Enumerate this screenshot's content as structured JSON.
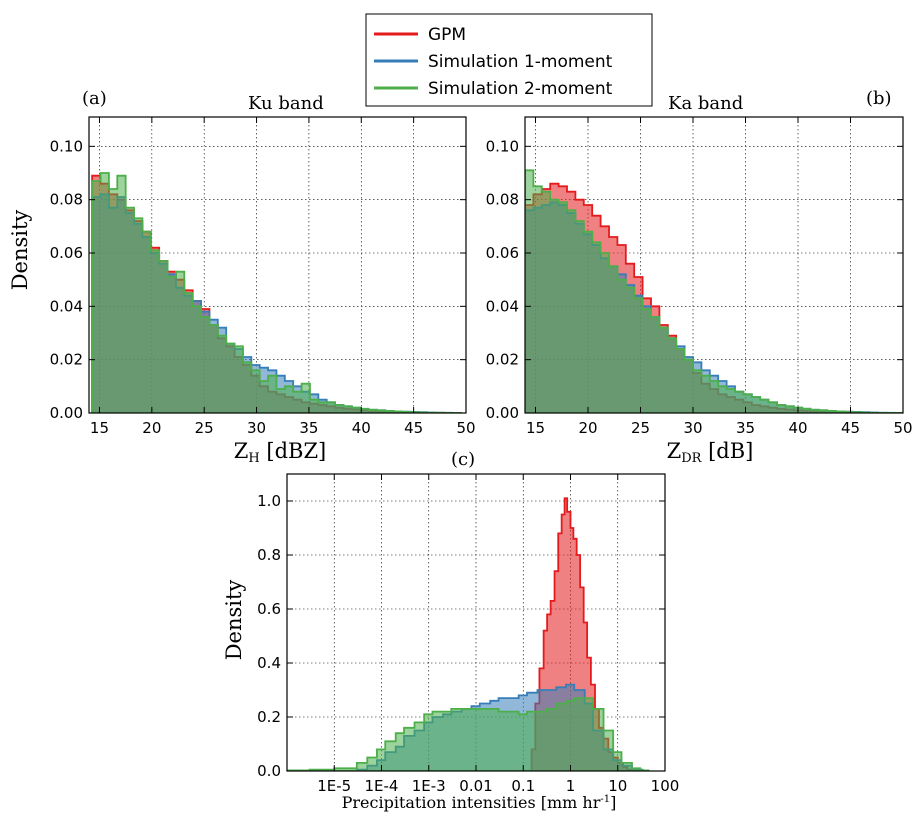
{
  "legend": {
    "entries": [
      {
        "name": "GPM",
        "color": "#e41a1c"
      },
      {
        "name": "Simulation 1-moment",
        "color": "#377eb8"
      },
      {
        "name": "Simulation 2-moment",
        "color": "#4daf4a"
      }
    ]
  },
  "colors": {
    "gpm": "#e41a1c",
    "sim1": "#377eb8",
    "sim2": "#4daf4a"
  },
  "chart_data": [
    {
      "type": "area",
      "panel_label": "(a)",
      "title": "Ku band",
      "xlabel_main": "Z",
      "xlabel_sub": "H",
      "xlabel_unit": " [dBZ]",
      "ylabel": "Density",
      "xlim": [
        14,
        50
      ],
      "ylim": [
        0,
        0.111
      ],
      "xticks": [
        15,
        20,
        25,
        30,
        35,
        40,
        45,
        50
      ],
      "yticks": [
        0.0,
        0.02,
        0.04,
        0.06,
        0.08,
        0.1
      ],
      "ytick_labels": [
        "0.00",
        "0.02",
        "0.04",
        "0.06",
        "0.08",
        "0.10"
      ],
      "show_ylabel": true,
      "grid": true,
      "x": [
        14.3,
        15.1,
        15.9,
        16.7,
        17.5,
        18.3,
        19.1,
        19.9,
        20.7,
        21.5,
        22.3,
        23.1,
        23.9,
        24.7,
        25.5,
        26.3,
        27.1,
        27.9,
        28.7,
        29.5,
        30.3,
        31.1,
        31.9,
        32.7,
        33.5,
        34.3,
        35.1,
        35.9,
        36.7,
        37.5,
        38.3,
        39.1,
        39.9,
        40.7,
        41.5,
        42.3,
        43.1,
        43.9,
        44.7,
        45.5,
        46.3,
        47.1,
        47.9,
        48.7
      ],
      "series": [
        {
          "name": "GPM",
          "values": [
            0.089,
            0.086,
            0.082,
            0.08,
            0.076,
            0.072,
            0.068,
            0.062,
            0.057,
            0.053,
            0.05,
            0.046,
            0.042,
            0.039,
            0.033,
            0.028,
            0.025,
            0.021,
            0.018,
            0.014,
            0.01,
            0.008,
            0.007,
            0.006,
            0.005,
            0.004,
            0.0035,
            0.003,
            0.0025,
            0.002,
            0.0016,
            0.0013,
            0.001,
            0.0008,
            0.0006,
            0.0005,
            0.0004,
            0.0003,
            0.0002,
            0.00015,
            0.0001,
            0.0001,
            5e-05,
            5e-05
          ]
        },
        {
          "name": "Simulation 1-moment",
          "values": [
            0.081,
            0.082,
            0.077,
            0.081,
            0.075,
            0.071,
            0.066,
            0.06,
            0.056,
            0.052,
            0.047,
            0.044,
            0.042,
            0.038,
            0.035,
            0.032,
            0.026,
            0.024,
            0.021,
            0.018,
            0.017,
            0.016,
            0.014,
            0.012,
            0.01,
            0.008,
            0.007,
            0.005,
            0.004,
            0.003,
            0.0025,
            0.002,
            0.0015,
            0.0012,
            0.001,
            0.0008,
            0.0006,
            0.0005,
            0.0004,
            0.0003,
            0.0002,
            0.0001,
            0.0001,
            5e-05
          ]
        },
        {
          "name": "Simulation 2-moment",
          "values": [
            0.087,
            0.09,
            0.084,
            0.089,
            0.077,
            0.073,
            0.068,
            0.061,
            0.057,
            0.051,
            0.053,
            0.045,
            0.04,
            0.036,
            0.033,
            0.029,
            0.026,
            0.025,
            0.019,
            0.016,
            0.012,
            0.014,
            0.009,
            0.01,
            0.008,
            0.011,
            0.005,
            0.004,
            0.004,
            0.003,
            0.0025,
            0.002,
            0.0016,
            0.0012,
            0.001,
            0.0008,
            0.0006,
            0.0004,
            0.0003,
            0.0002,
            0.0001,
            0.0001,
            5e-05,
            5e-05
          ]
        }
      ]
    },
    {
      "type": "area",
      "panel_label": "(b)",
      "title": "Ka band",
      "xlabel_main": "Z",
      "xlabel_sub": "DR",
      "xlabel_unit": " [dB]",
      "ylabel": "Density",
      "xlim": [
        14,
        50
      ],
      "ylim": [
        0,
        0.111
      ],
      "xticks": [
        15,
        20,
        25,
        30,
        35,
        40,
        45,
        50
      ],
      "yticks": [
        0.0,
        0.02,
        0.04,
        0.06,
        0.08,
        0.1
      ],
      "ytick_labels": [
        "0.00",
        "0.02",
        "0.04",
        "0.06",
        "0.08",
        "0.10"
      ],
      "show_ylabel": false,
      "grid": true,
      "x": [
        14.0,
        14.8,
        15.6,
        16.4,
        17.2,
        18.0,
        18.8,
        19.6,
        20.4,
        21.2,
        22.0,
        22.8,
        23.6,
        24.4,
        25.2,
        26.0,
        26.8,
        27.6,
        28.4,
        29.2,
        30.0,
        30.8,
        31.6,
        32.4,
        33.2,
        34.0,
        34.8,
        35.6,
        36.4,
        37.2,
        38.0,
        38.8,
        39.6,
        40.4,
        41.2,
        42.0,
        42.8,
        43.6,
        44.4,
        45.2,
        46.0,
        46.8,
        47.6,
        48.4,
        49.2
      ],
      "series": [
        {
          "name": "GPM",
          "values": [
            0.078,
            0.082,
            0.084,
            0.086,
            0.085,
            0.083,
            0.08,
            0.078,
            0.074,
            0.07,
            0.066,
            0.063,
            0.056,
            0.051,
            0.043,
            0.04,
            0.033,
            0.029,
            0.024,
            0.02,
            0.015,
            0.011,
            0.009,
            0.007,
            0.006,
            0.005,
            0.004,
            0.003,
            0.0025,
            0.002,
            0.0016,
            0.0013,
            0.001,
            0.0008,
            0.0006,
            0.0005,
            0.0004,
            0.0003,
            0.0002,
            0.00015,
            0.0001,
            0.0001,
            5e-05,
            5e-05,
            3e-05
          ]
        },
        {
          "name": "Simulation 1-moment",
          "values": [
            0.076,
            0.077,
            0.078,
            0.079,
            0.078,
            0.075,
            0.071,
            0.067,
            0.063,
            0.058,
            0.055,
            0.052,
            0.048,
            0.044,
            0.04,
            0.036,
            0.032,
            0.028,
            0.025,
            0.021,
            0.019,
            0.016,
            0.014,
            0.012,
            0.01,
            0.008,
            0.007,
            0.006,
            0.005,
            0.004,
            0.003,
            0.0025,
            0.002,
            0.0016,
            0.0012,
            0.001,
            0.0008,
            0.0006,
            0.0005,
            0.0004,
            0.0003,
            0.0002,
            0.0001,
            0.0001,
            5e-05
          ]
        },
        {
          "name": "Simulation 2-moment",
          "values": [
            0.091,
            0.085,
            0.083,
            0.08,
            0.079,
            0.076,
            0.072,
            0.068,
            0.064,
            0.06,
            0.055,
            0.05,
            0.047,
            0.043,
            0.039,
            0.036,
            0.032,
            0.028,
            0.024,
            0.02,
            0.016,
            0.014,
            0.012,
            0.01,
            0.009,
            0.008,
            0.007,
            0.006,
            0.005,
            0.004,
            0.003,
            0.0025,
            0.002,
            0.0016,
            0.0012,
            0.001,
            0.0008,
            0.0006,
            0.0004,
            0.0003,
            0.0002,
            0.0001,
            0.0001,
            5e-05,
            3e-05
          ]
        }
      ]
    },
    {
      "type": "area",
      "panel_label": "(c)",
      "title": "",
      "xlabel": "Precipitation intensities [mm hr",
      "xlabel_sup": "-1",
      "xlabel_close": "]",
      "ylabel": "Density",
      "xscale": "log",
      "xlim": [
        1e-06,
        100
      ],
      "ylim": [
        0,
        1.1
      ],
      "xticks": [
        1e-05,
        0.0001,
        0.001,
        0.01,
        0.1,
        1,
        10,
        100
      ],
      "xtick_labels": [
        "1E-5",
        "1E-4",
        "1E-3",
        "0.01",
        "0.1",
        "1",
        "10",
        "100"
      ],
      "yticks": [
        0.0,
        0.2,
        0.4,
        0.6,
        0.8,
        1.0
      ],
      "ytick_labels": [
        "0.0",
        "0.2",
        "0.4",
        "0.6",
        "0.8",
        "1.0"
      ],
      "show_ylabel": true,
      "grid": true,
      "series": [
        {
          "name": "GPM",
          "x": [
            0.15,
            0.18,
            0.22,
            0.27,
            0.32,
            0.38,
            0.46,
            0.55,
            0.65,
            0.75,
            0.85,
            1.0,
            1.15,
            1.35,
            1.6,
            1.9,
            2.25,
            2.7,
            3.3,
            4.0,
            5.0,
            6.3,
            8.0,
            10.0,
            13.0,
            16.0,
            20.0
          ],
          "values": [
            0.08,
            0.25,
            0.38,
            0.52,
            0.58,
            0.63,
            0.74,
            0.88,
            0.95,
            1.01,
            0.96,
            0.9,
            0.86,
            0.8,
            0.68,
            0.55,
            0.42,
            0.32,
            0.23,
            0.16,
            0.12,
            0.07,
            0.05,
            0.03,
            0.015,
            0.005,
            0.0
          ]
        },
        {
          "name": "Simulation 1-moment",
          "x": [
            3e-05,
            5e-05,
            8e-05,
            0.00012,
            0.0002,
            0.0003,
            0.0005,
            0.0008,
            0.0012,
            0.002,
            0.003,
            0.005,
            0.008,
            0.012,
            0.02,
            0.03,
            0.05,
            0.08,
            0.12,
            0.2,
            0.3,
            0.5,
            0.8,
            1.2,
            2.0,
            3.0,
            5.0,
            8.0,
            12.0,
            20.0
          ],
          "values": [
            0.005,
            0.02,
            0.04,
            0.07,
            0.09,
            0.13,
            0.15,
            0.18,
            0.2,
            0.21,
            0.22,
            0.23,
            0.24,
            0.25,
            0.26,
            0.27,
            0.27,
            0.28,
            0.29,
            0.3,
            0.3,
            0.31,
            0.32,
            0.3,
            0.25,
            0.15,
            0.08,
            0.04,
            0.02,
            0.005
          ]
        },
        {
          "name": "Simulation 2-moment",
          "x": [
            1e-06,
            3e-06,
            1e-05,
            3e-05,
            5e-05,
            8e-05,
            0.00012,
            0.0002,
            0.0003,
            0.0005,
            0.0008,
            0.0012,
            0.002,
            0.003,
            0.005,
            0.008,
            0.012,
            0.02,
            0.03,
            0.05,
            0.08,
            0.12,
            0.2,
            0.3,
            0.5,
            0.8,
            1.2,
            2.0,
            3.0,
            5.0,
            8.0,
            12.0,
            20.0,
            30.0
          ],
          "values": [
            0.002,
            0.005,
            0.01,
            0.03,
            0.05,
            0.08,
            0.11,
            0.14,
            0.16,
            0.18,
            0.21,
            0.22,
            0.22,
            0.23,
            0.23,
            0.23,
            0.23,
            0.23,
            0.22,
            0.22,
            0.21,
            0.22,
            0.22,
            0.23,
            0.25,
            0.26,
            0.27,
            0.27,
            0.23,
            0.15,
            0.07,
            0.03,
            0.01,
            0.002
          ]
        }
      ]
    }
  ]
}
